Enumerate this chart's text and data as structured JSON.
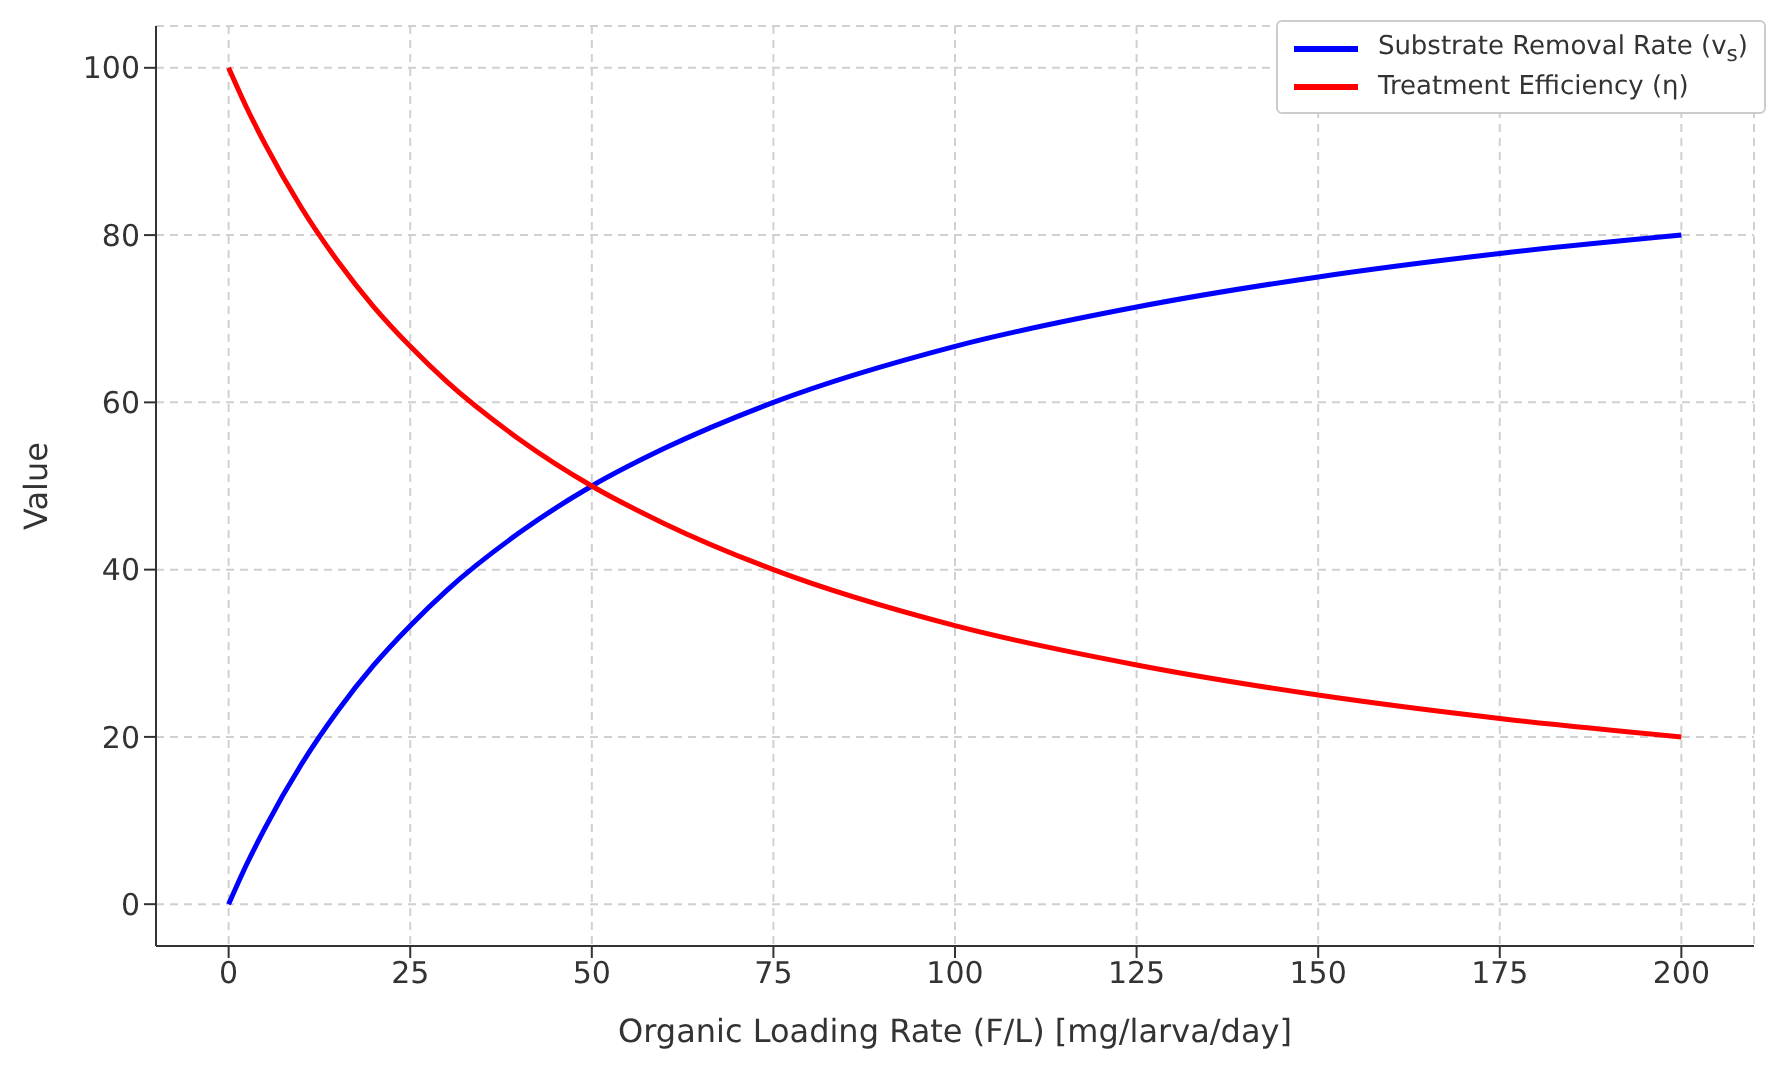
{
  "chart_data": {
    "type": "line",
    "xlabel": "Organic Loading Rate (F/L) [mg/larva/day]",
    "ylabel": "Value",
    "xlim": [
      -10,
      210
    ],
    "xticks": [
      0,
      25,
      50,
      75,
      100,
      125,
      150,
      175,
      200
    ],
    "ylim": [
      -5,
      105
    ],
    "yticks": [
      0,
      20,
      40,
      60,
      80,
      100
    ],
    "grid": true,
    "legend": "top right",
    "line_style": "solid",
    "marker": "none",
    "series": [
      {
        "name": "Substrate Removal Rate (v$_{s}$)",
        "color": "#0000ff",
        "x": [
          0,
          2.5,
          5,
          10,
          15,
          20,
          25,
          30,
          40,
          50,
          60,
          75,
          100,
          125,
          150,
          175,
          200
        ],
        "values": [
          0,
          4.8,
          9.1,
          16.7,
          23.1,
          28.6,
          33.3,
          37.5,
          44.4,
          50,
          54.5,
          60,
          66.7,
          71.4,
          75,
          77.8,
          80
        ]
      },
      {
        "name": "Treatment Efficiency (η)",
        "color": "#ff0000",
        "x": [
          0,
          2.5,
          5,
          10,
          15,
          20,
          25,
          30,
          40,
          50,
          60,
          75,
          100,
          125,
          150,
          175,
          200
        ],
        "values": [
          100,
          95.2,
          90.9,
          83.3,
          76.9,
          71.4,
          66.7,
          62.5,
          55.6,
          50,
          45.5,
          40,
          33.3,
          28.6,
          25,
          22.2,
          20
        ]
      }
    ]
  }
}
